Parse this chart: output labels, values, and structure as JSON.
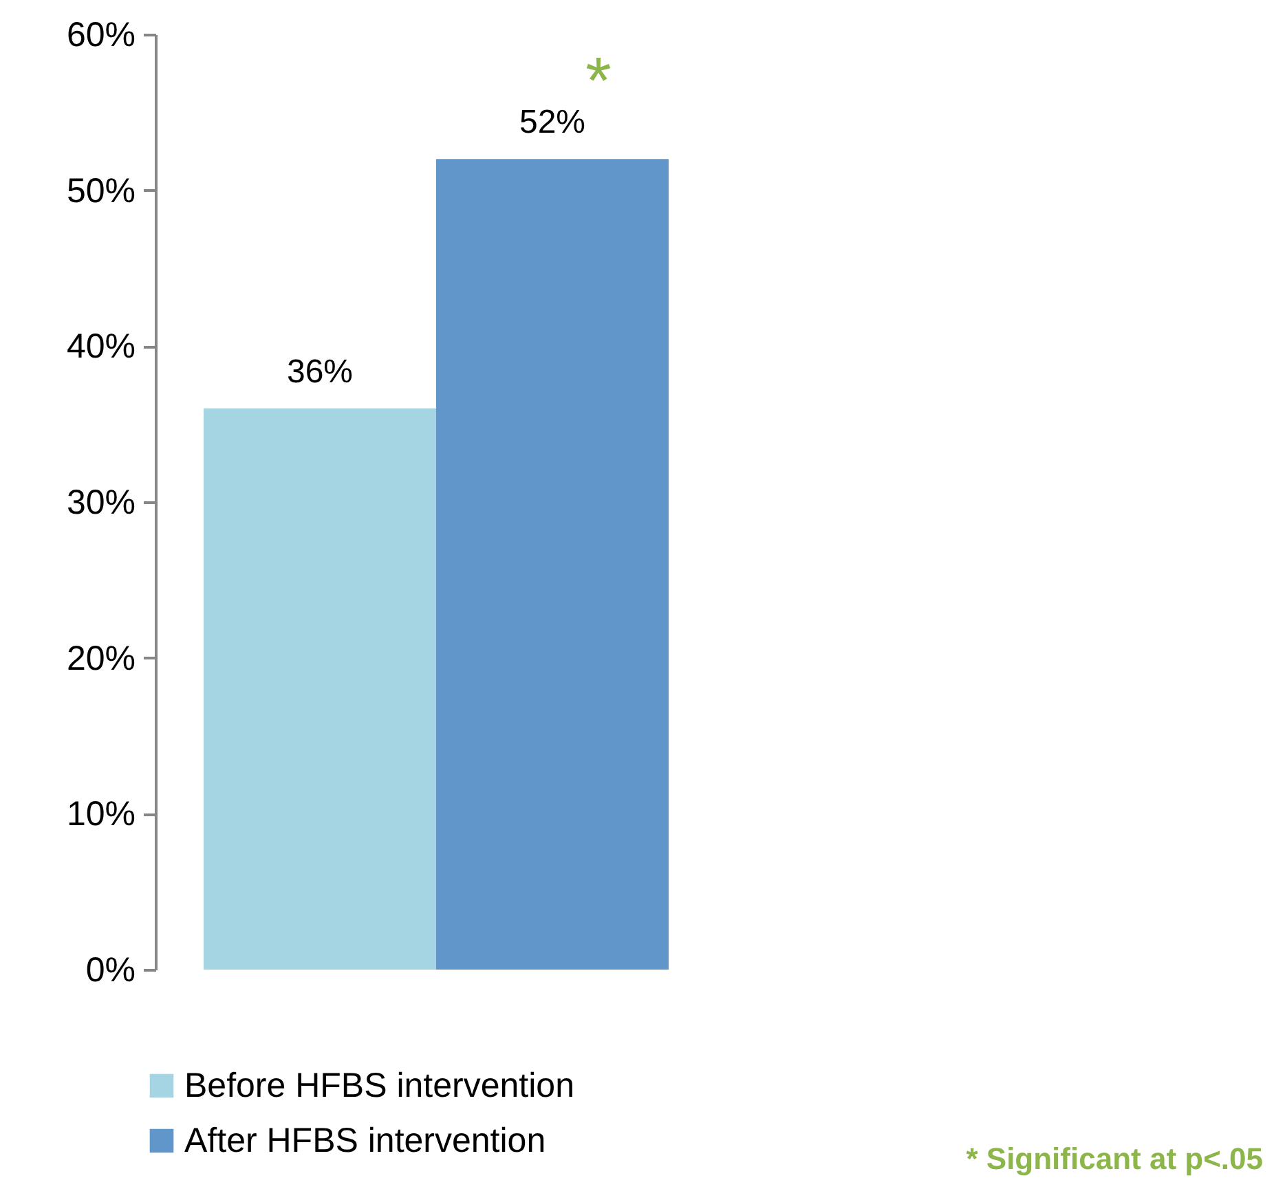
{
  "chart_data": {
    "type": "bar",
    "categories": [
      null
    ],
    "series": [
      {
        "name": "Before HFBS intervention",
        "color": "#a5d5e3",
        "values": [
          36
        ],
        "value_labels": [
          "36%"
        ]
      },
      {
        "name": "After HFBS intervention",
        "color": "#6096c9",
        "values": [
          52
        ],
        "value_labels": [
          "52%"
        ]
      }
    ],
    "ylim": [
      0,
      60
    ],
    "yticks": [
      {
        "value": 0,
        "label": "0%"
      },
      {
        "value": 10,
        "label": "10%"
      },
      {
        "value": 20,
        "label": "20%"
      },
      {
        "value": 30,
        "label": "30%"
      },
      {
        "value": 40,
        "label": "40%"
      },
      {
        "value": 50,
        "label": "50%"
      },
      {
        "value": 60,
        "label": "60%"
      }
    ],
    "grid": false,
    "legend": "bottom left",
    "annotations": [
      "*",
      "* Significant at p<.05"
    ]
  }
}
